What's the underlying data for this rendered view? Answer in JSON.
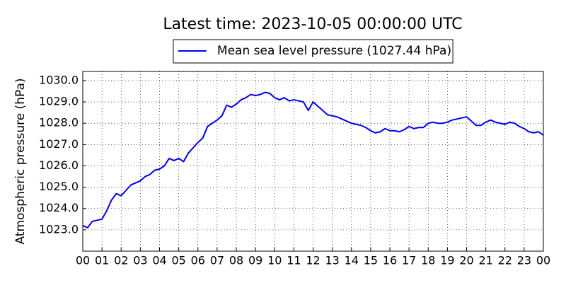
{
  "chart_data": {
    "type": "line",
    "title": "Latest time: 2023-10-05 00:00:00 UTC",
    "y_label": "Atmospheric pressure (hPa)",
    "x": [
      0,
      0.25,
      0.5,
      0.75,
      1,
      1.25,
      1.5,
      1.75,
      2,
      2.25,
      2.5,
      2.75,
      3,
      3.25,
      3.5,
      3.75,
      4,
      4.25,
      4.5,
      4.75,
      5,
      5.25,
      5.5,
      5.75,
      6,
      6.25,
      6.5,
      6.75,
      7,
      7.25,
      7.5,
      7.75,
      8,
      8.25,
      8.5,
      8.75,
      9,
      9.25,
      9.5,
      9.75,
      10,
      10.25,
      10.5,
      10.75,
      11,
      11.25,
      11.5,
      11.75,
      12,
      12.25,
      12.5,
      12.75,
      13,
      13.25,
      13.5,
      13.75,
      14,
      14.25,
      14.5,
      14.75,
      15,
      15.25,
      15.5,
      15.75,
      16,
      16.25,
      16.5,
      16.75,
      17,
      17.25,
      17.5,
      17.75,
      18,
      18.25,
      18.5,
      18.75,
      19,
      19.25,
      19.5,
      19.75,
      20,
      20.25,
      20.5,
      20.75,
      21,
      21.25,
      21.5,
      21.75,
      22,
      22.25,
      22.5,
      22.75,
      23,
      23.25,
      23.5,
      23.75,
      24
    ],
    "series": [
      {
        "name": "Mean sea level pressure (1027.44 hPa)",
        "color": "#0000ee",
        "values": [
          1023.2,
          1023.1,
          1023.4,
          1023.45,
          1023.5,
          1023.9,
          1024.4,
          1024.7,
          1024.6,
          1024.85,
          1025.1,
          1025.2,
          1025.3,
          1025.5,
          1025.6,
          1025.8,
          1025.85,
          1026.0,
          1026.35,
          1026.25,
          1026.35,
          1026.2,
          1026.6,
          1026.85,
          1027.1,
          1027.3,
          1027.85,
          1028.0,
          1028.15,
          1028.35,
          1028.85,
          1028.75,
          1028.9,
          1029.1,
          1029.2,
          1029.35,
          1029.3,
          1029.35,
          1029.45,
          1029.4,
          1029.2,
          1029.1,
          1029.2,
          1029.05,
          1029.1,
          1029.05,
          1029.0,
          1028.6,
          1029.0,
          1028.8,
          1028.6,
          1028.4,
          1028.35,
          1028.3,
          1028.2,
          1028.1,
          1028.0,
          1027.95,
          1027.9,
          1027.8,
          1027.65,
          1027.55,
          1027.6,
          1027.75,
          1027.65,
          1027.65,
          1027.6,
          1027.7,
          1027.85,
          1027.75,
          1027.8,
          1027.8,
          1028.0,
          1028.05,
          1028.0,
          1028.0,
          1028.05,
          1028.15,
          1028.2,
          1028.25,
          1028.3,
          1028.1,
          1027.9,
          1027.9,
          1028.05,
          1028.15,
          1028.05,
          1028.0,
          1027.95,
          1028.05,
          1028.0,
          1027.85,
          1027.75,
          1027.6,
          1027.55,
          1027.6,
          1027.44
        ]
      }
    ],
    "xlim": [
      0,
      24
    ],
    "ylim": [
      1022.0,
      1030.43
    ],
    "xticks": [
      {
        "value": 0,
        "label": "00"
      },
      {
        "value": 1,
        "label": "01"
      },
      {
        "value": 2,
        "label": "02"
      },
      {
        "value": 3,
        "label": "03"
      },
      {
        "value": 4,
        "label": "04"
      },
      {
        "value": 5,
        "label": "05"
      },
      {
        "value": 6,
        "label": "06"
      },
      {
        "value": 7,
        "label": "07"
      },
      {
        "value": 8,
        "label": "08"
      },
      {
        "value": 9,
        "label": "09"
      },
      {
        "value": 10,
        "label": "10"
      },
      {
        "value": 11,
        "label": "11"
      },
      {
        "value": 12,
        "label": "12"
      },
      {
        "value": 13,
        "label": "13"
      },
      {
        "value": 14,
        "label": "14"
      },
      {
        "value": 15,
        "label": "15"
      },
      {
        "value": 16,
        "label": "16"
      },
      {
        "value": 17,
        "label": "17"
      },
      {
        "value": 18,
        "label": "18"
      },
      {
        "value": 19,
        "label": "19"
      },
      {
        "value": 20,
        "label": "20"
      },
      {
        "value": 21,
        "label": "21"
      },
      {
        "value": 22,
        "label": "22"
      },
      {
        "value": 23,
        "label": "23"
      },
      {
        "value": 24,
        "label": "00"
      }
    ],
    "yticks": [
      {
        "value": 1023,
        "label": "1023.0"
      },
      {
        "value": 1024,
        "label": "1024.0"
      },
      {
        "value": 1025,
        "label": "1025.0"
      },
      {
        "value": 1026,
        "label": "1026.0"
      },
      {
        "value": 1027,
        "label": "1027.0"
      },
      {
        "value": 1028,
        "label": "1028.0"
      },
      {
        "value": 1029,
        "label": "1029.0"
      },
      {
        "value": 1030,
        "label": "1030.0"
      }
    ],
    "grid": true,
    "legend": "upper center"
  }
}
